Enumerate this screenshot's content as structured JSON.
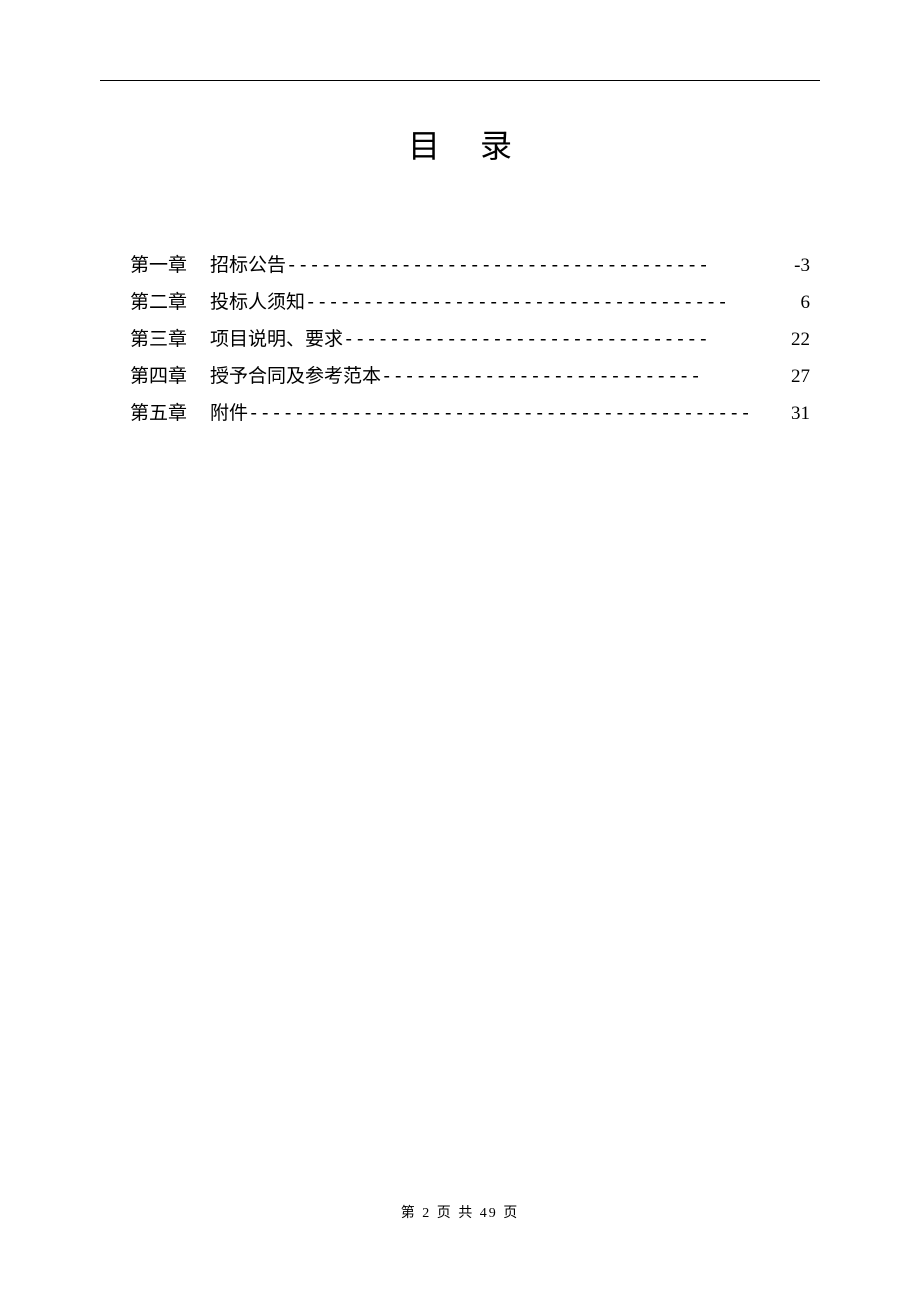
{
  "document": {
    "title": "目录",
    "background_color": "#ffffff",
    "text_color": "#000000",
    "title_fontsize": 32,
    "body_fontsize": 19,
    "footer_fontsize": 14,
    "line_height": 36
  },
  "toc": {
    "entries": [
      {
        "chapter": "第一章",
        "title": "招标公告",
        "leader": "------------------------------------- ",
        "page": "-3"
      },
      {
        "chapter": "第二章",
        "title": "投标人须知",
        "leader": "-------------------------------------",
        "page": "6"
      },
      {
        "chapter": "第三章",
        "title": "项目说明、要求",
        "leader": "--------------------------------",
        "page": "22"
      },
      {
        "chapter": "第四章",
        "title": "授予合同及参考范本",
        "leader": "----------------------------",
        "page": "27"
      },
      {
        "chapter": "第五章",
        "title": "附件",
        "leader": "--------------------------------------------",
        "page": "31"
      }
    ]
  },
  "footer": {
    "text": "第 2 页 共 49 页",
    "current_page": 2,
    "total_pages": 49
  }
}
